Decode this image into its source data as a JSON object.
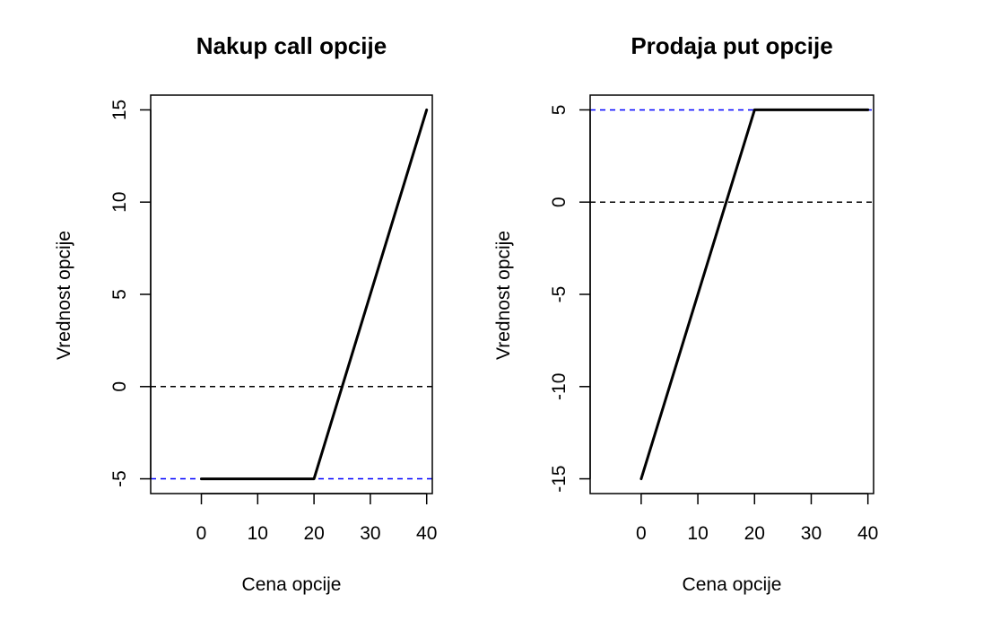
{
  "chart_data": [
    {
      "type": "line",
      "title": "Nakup call opcije",
      "xlabel": "Cena opcije",
      "ylabel": "Vrednost opcije",
      "xlim": [
        -9,
        41
      ],
      "ylim": [
        -5.8,
        15.8
      ],
      "x_ticks": [
        0,
        10,
        20,
        30,
        40
      ],
      "y_ticks": [
        -5,
        0,
        5,
        10,
        15
      ],
      "x_tick_labels": [
        "0",
        "10",
        "20",
        "30",
        "40"
      ],
      "y_tick_labels": [
        "-5",
        "0",
        "5",
        "10",
        "15"
      ],
      "grid": false,
      "series": [
        {
          "x": [
            0,
            20,
            40
          ],
          "y": [
            -5,
            -5,
            15
          ],
          "color": "#000000"
        }
      ],
      "hlines": [
        {
          "y": 0,
          "color": "#000000",
          "style": "dashed"
        },
        {
          "y": -5,
          "color": "#0000ff",
          "style": "dashed"
        }
      ]
    },
    {
      "type": "line",
      "title": "Prodaja put opcije",
      "xlabel": "Cena opcije",
      "ylabel": "Vrednost opcije",
      "xlim": [
        -9,
        41
      ],
      "ylim": [
        -15.8,
        5.8
      ],
      "x_ticks": [
        0,
        10,
        20,
        30,
        40
      ],
      "y_ticks": [
        -15,
        -10,
        -5,
        0,
        5
      ],
      "x_tick_labels": [
        "0",
        "10",
        "20",
        "30",
        "40"
      ],
      "y_tick_labels": [
        "-15",
        "-10",
        "-5",
        "0",
        "5"
      ],
      "grid": false,
      "series": [
        {
          "x": [
            0,
            20,
            40
          ],
          "y": [
            -15,
            5,
            5
          ],
          "color": "#000000"
        }
      ],
      "hlines": [
        {
          "y": 0,
          "color": "#000000",
          "style": "dashed"
        },
        {
          "y": 5,
          "color": "#0000ff",
          "style": "dashed"
        }
      ]
    }
  ]
}
